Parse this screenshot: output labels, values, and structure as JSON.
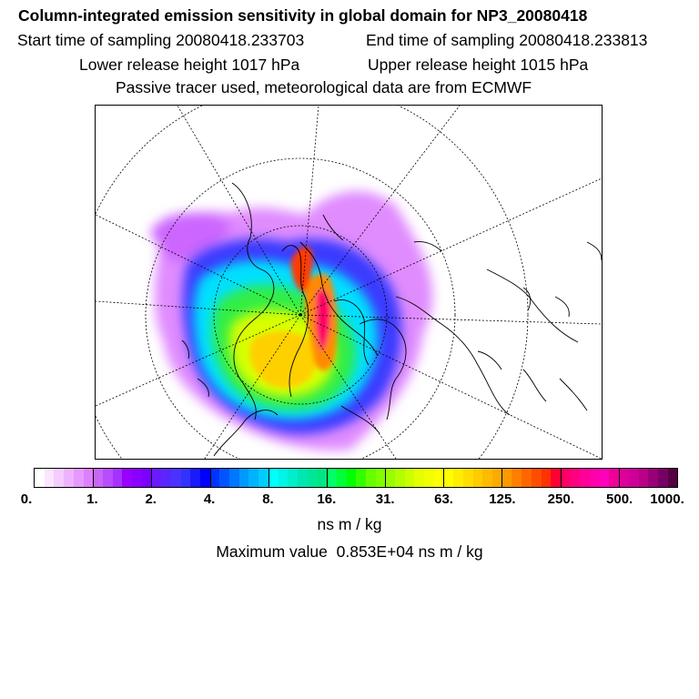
{
  "title": "Column-integrated emission sensitivity in global domain for NP3_20080418",
  "sampling": {
    "start": "Start time of sampling 20080418.233703",
    "end": "End time of sampling 20080418.233813"
  },
  "release": {
    "lower": "Lower release height 1017 hPa",
    "upper": "Upper release height 1015 hPa"
  },
  "note": "Passive tracer used, meteorological data are from ECMWF",
  "colorbar": {
    "ticks": [
      "0.",
      "1.",
      "2.",
      "4.",
      "8.",
      "16.",
      "31.",
      "63.",
      "125.",
      "250.",
      "500.",
      "1000."
    ],
    "colors": [
      "#ffffff",
      "#fbe6ff",
      "#f5ccff",
      "#eeb3ff",
      "#e699ff",
      "#dd80ff",
      "#c866f5",
      "#b84dff",
      "#a533ff",
      "#9900ff",
      "#8a00ff",
      "#7a00ff",
      "#6a1aff",
      "#5a26ff",
      "#4a33ff",
      "#3333ff",
      "#1a1aff",
      "#0000ff",
      "#0033ff",
      "#0055ff",
      "#0077ff",
      "#0099ff",
      "#00b3ff",
      "#00ccff",
      "#00ffff",
      "#00f5e6",
      "#00eecc",
      "#00e6b3",
      "#00e699",
      "#00e680",
      "#00ff66",
      "#00ff33",
      "#00ff00",
      "#33ff00",
      "#66ff00",
      "#80ff00",
      "#99ff00",
      "#b3ff00",
      "#ccff00",
      "#e6ff00",
      "#f2ff00",
      "#ffff00",
      "#ffff00",
      "#ffee00",
      "#ffdd00",
      "#ffcc00",
      "#ffbb00",
      "#ffaa00",
      "#ff9900",
      "#ff8000",
      "#ff6600",
      "#ff4d00",
      "#ff3300",
      "#ff0033",
      "#ff0066",
      "#ff0080",
      "#ff0099",
      "#ff00aa",
      "#ff00bb",
      "#ee0099",
      "#dd0099",
      "#cc0099",
      "#bb0088",
      "#990077",
      "#770066",
      "#550044"
    ]
  },
  "unit": "ns m / kg",
  "max_value": "Maximum value  0.853E+04 ns m / kg"
}
